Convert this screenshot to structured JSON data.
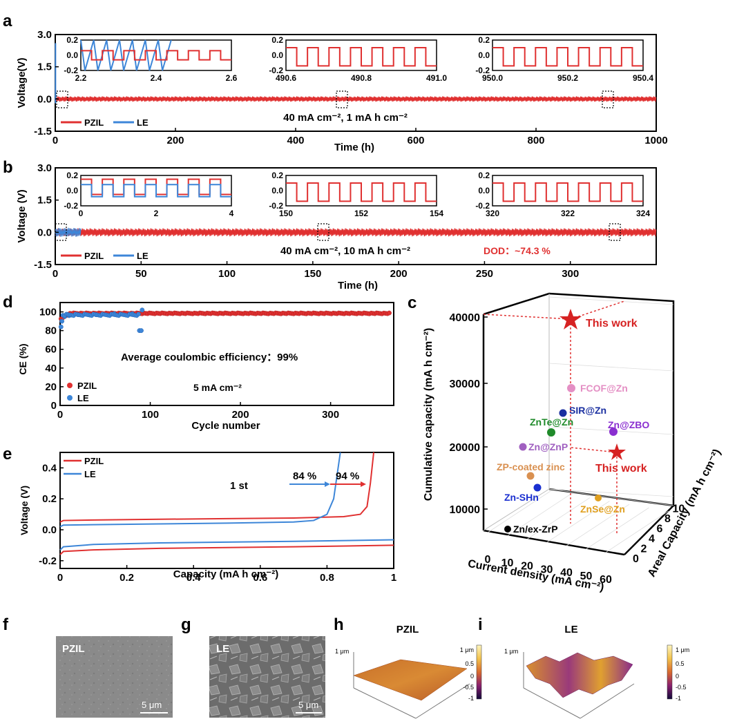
{
  "colors": {
    "pzil": "#e03030",
    "le": "#3d86d8",
    "black": "#000000",
    "sem_bg": "#6a6a6a"
  },
  "panel_a": {
    "letter": "a",
    "ylabel": "Voltage(V)",
    "xlabel": "Time (h)",
    "annotation": "40 mA cm⁻², 1 mA h cm⁻²",
    "legend": [
      "PZIL",
      "LE"
    ],
    "insets": [
      {
        "xticks": [
          "2.2",
          "2.4",
          "2.6"
        ],
        "yticks": [
          "0.2",
          "0.0",
          "-0.2"
        ]
      },
      {
        "xticks": [
          "490.6",
          "490.8",
          "491.0"
        ],
        "yticks": [
          "0.2",
          "0.0",
          "-0.2"
        ]
      },
      {
        "xticks": [
          "950.0",
          "950.2",
          "950.4"
        ],
        "yticks": [
          "0.2",
          "0.0",
          "-0.2"
        ]
      }
    ]
  },
  "panel_b": {
    "letter": "b",
    "ylabel": "Voltage (V)",
    "xlabel": "Time (h)",
    "annotation": "40 mA cm⁻², 10 mA h cm⁻²",
    "dod": "DOD：~74.3 %",
    "legend": [
      "PZIL",
      "LE"
    ],
    "insets": [
      {
        "xticks": [
          "0",
          "2",
          "4"
        ],
        "yticks": [
          "0.2",
          "0.0",
          "-0.2"
        ]
      },
      {
        "xticks": [
          "150",
          "152",
          "154"
        ],
        "yticks": [
          "0.2",
          "0.0",
          "-0.2"
        ]
      },
      {
        "xticks": [
          "320",
          "322",
          "324"
        ],
        "yticks": [
          "0.2",
          "0.0",
          "-0.2"
        ]
      }
    ]
  },
  "panel_d": {
    "letter": "d",
    "ylabel": "CE (%)",
    "xlabel": "Cycle number",
    "annotation": "Average coulombic efficiency：99%",
    "current": "5 mA cm⁻²",
    "legend": [
      "PZIL",
      "LE"
    ]
  },
  "panel_e": {
    "letter": "e",
    "ylabel": "Voltage (V)",
    "xlabel": "Capacity (mA h cm⁻²)",
    "cycle": "1 st",
    "pct_le": "84 %",
    "pct_pzil": "94 %",
    "legend": [
      "PZIL",
      "LE"
    ]
  },
  "panel_c": {
    "letter": "c",
    "zlabel": "Cumulative capacity (mA h cm⁻²)",
    "xlabel": "Current density (mA cm⁻²)",
    "ylabel": "Areal Capacity (mA h cm⁻²)",
    "zticks": [
      "10000",
      "20000",
      "30000",
      "40000"
    ],
    "xticks": [
      "0",
      "10",
      "20",
      "30",
      "40",
      "50",
      "60"
    ],
    "yticks": [
      "0",
      "2",
      "4",
      "6",
      "8",
      "10"
    ],
    "this_work": "This work",
    "points": [
      {
        "label": "FCOF@Zn",
        "color": "#e48fc4"
      },
      {
        "label": "SIR@Zn",
        "color": "#1a2fa0"
      },
      {
        "label": "ZnTe@Zn",
        "color": "#1f8a2a"
      },
      {
        "label": "Zn@ZBO",
        "color": "#8a2fd0"
      },
      {
        "label": "Zn@ZnP",
        "color": "#a060c0"
      },
      {
        "label": "ZP-coated zinc",
        "color": "#d99050"
      },
      {
        "label": "Zn-SHn",
        "color": "#1a2fd0"
      },
      {
        "label": "ZnSe@Zn",
        "color": "#e0a020"
      },
      {
        "label": "Zn/ex-ZrP",
        "color": "#000000"
      }
    ]
  },
  "panel_f": {
    "letter": "f",
    "label": "PZIL",
    "scale": "5 μm"
  },
  "panel_g": {
    "letter": "g",
    "label": "LE",
    "scale": "5 μm"
  },
  "panel_h": {
    "letter": "h",
    "title": "PZIL",
    "zlabel": "1 μm",
    "cbar": [
      "1 μm",
      "0.5",
      "0",
      "-0.5",
      "-1"
    ]
  },
  "panel_i": {
    "letter": "i",
    "title": "LE",
    "zlabel": "1 μm",
    "cbar": [
      "1 μm",
      "0.5",
      "0",
      "-0.5",
      "-1"
    ]
  },
  "chart_data": [
    {
      "type": "line",
      "panel": "a",
      "title": "",
      "xlabel": "Time (h)",
      "ylabel": "Voltage(V)",
      "xlim": [
        0,
        1000
      ],
      "ylim": [
        -1.5,
        3.0
      ],
      "xticks": [
        0,
        200,
        400,
        600,
        800,
        1000
      ],
      "yticks": [
        -1.5,
        0.0,
        1.5,
        3.0
      ],
      "series": [
        {
          "name": "PZIL",
          "x": [
            0,
            1000
          ],
          "y_range": [
            -0.1,
            0.1
          ]
        },
        {
          "name": "LE",
          "x": [
            0,
            2.6
          ],
          "y_range": [
            -0.2,
            2.6
          ]
        }
      ]
    },
    {
      "type": "line",
      "panel": "b",
      "title": "",
      "xlabel": "Time (h)",
      "ylabel": "Voltage (V)",
      "xlim": [
        0,
        350
      ],
      "ylim": [
        -1.5,
        3.0
      ],
      "xticks": [
        0,
        50,
        100,
        150,
        200,
        250,
        300
      ],
      "yticks": [
        -1.5,
        0.0,
        1.5,
        3.0
      ],
      "series": [
        {
          "name": "PZIL",
          "x": [
            0,
            350
          ],
          "y_range": [
            -0.15,
            0.15
          ]
        },
        {
          "name": "LE",
          "x": [
            0,
            15
          ],
          "y_range": [
            -0.2,
            0.2
          ]
        }
      ]
    },
    {
      "type": "scatter",
      "panel": "d",
      "title": "",
      "xlabel": "Cycle number",
      "ylabel": "CE (%)",
      "xlim": [
        0,
        370
      ],
      "ylim": [
        0,
        110
      ],
      "xticks": [
        0,
        100,
        200,
        300
      ],
      "yticks": [
        0,
        20,
        40,
        60,
        80,
        100
      ],
      "series": [
        {
          "name": "PZIL",
          "x": [
            1,
            2,
            3,
            5,
            10,
            20,
            50,
            100,
            150,
            200,
            250,
            300,
            350,
            365
          ],
          "y": [
            92,
            95,
            96,
            97,
            98,
            98,
            99,
            99,
            99,
            99,
            99,
            99,
            99,
            99
          ]
        },
        {
          "name": "LE",
          "x": [
            1,
            2,
            5,
            10,
            20,
            40,
            60,
            80,
            88,
            90,
            91
          ],
          "y": [
            84,
            90,
            95,
            96,
            97,
            97,
            98,
            98,
            80,
            80,
            102
          ]
        }
      ]
    },
    {
      "type": "line",
      "panel": "e",
      "title": "",
      "xlabel": "Capacity (mA h cm⁻²)",
      "ylabel": "Voltage (V)",
      "xlim": [
        0,
        1.0
      ],
      "ylim": [
        -0.25,
        0.5
      ],
      "xticks": [
        0.0,
        0.2,
        0.4,
        0.6,
        0.8,
        1.0
      ],
      "yticks": [
        -0.2,
        0.0,
        0.2,
        0.4
      ],
      "series": [
        {
          "name": "PZIL",
          "x": [
            0.0,
            0.01,
            0.1,
            0.3,
            0.5,
            0.7,
            0.85,
            0.9,
            0.92,
            0.93,
            0.94
          ],
          "y": [
            0.05,
            0.06,
            0.063,
            0.068,
            0.072,
            0.076,
            0.085,
            0.1,
            0.15,
            0.3,
            0.5
          ]
        },
        {
          "name": "LE",
          "x": [
            0.0,
            0.01,
            0.1,
            0.3,
            0.5,
            0.7,
            0.76,
            0.8,
            0.82,
            0.83,
            0.84
          ],
          "y": [
            0.02,
            0.03,
            0.033,
            0.038,
            0.043,
            0.05,
            0.06,
            0.1,
            0.2,
            0.35,
            0.5
          ]
        },
        {
          "name": "PZIL",
          "x": [
            0.0,
            0.01,
            0.1,
            0.3,
            0.5,
            0.7,
            1.0
          ],
          "y": [
            -0.16,
            -0.14,
            -0.13,
            -0.12,
            -0.115,
            -0.11,
            -0.1
          ]
        },
        {
          "name": "LE",
          "x": [
            0.0,
            0.01,
            0.1,
            0.3,
            0.5,
            0.7,
            1.0
          ],
          "y": [
            -0.13,
            -0.11,
            -0.095,
            -0.085,
            -0.08,
            -0.075,
            -0.065
          ]
        }
      ]
    },
    {
      "type": "scatter",
      "panel": "c",
      "title": "",
      "xlabel": "Current density (mA cm⁻²)",
      "ylabel": "Areal Capacity (mA h cm⁻²)",
      "zlabel": "Cumulative capacity (mA h cm⁻²)",
      "xlim": [
        0,
        60
      ],
      "ylim": [
        0,
        10
      ],
      "zlim": [
        6000,
        42000
      ],
      "points": [
        {
          "label": "This work",
          "x": 40,
          "y": 10,
          "z": 40000,
          "marker": "star"
        },
        {
          "label": "This work",
          "x": 40,
          "y": 1,
          "z": 40000,
          "marker": "star"
        },
        {
          "label": "FCOF@Zn",
          "x": 20,
          "y": 5,
          "z": 29000
        },
        {
          "label": "SIR@Zn",
          "x": 10,
          "y": 5,
          "z": 25000
        },
        {
          "label": "ZnTe@Zn",
          "x": 10,
          "y": 5,
          "z": 22000
        },
        {
          "label": "Zn@ZBO",
          "x": 30,
          "y": 5,
          "z": 22000
        },
        {
          "label": "Zn@ZnP",
          "x": 5,
          "y": 2,
          "z": 20000
        },
        {
          "label": "ZP-coated zinc",
          "x": 5,
          "y": 1,
          "z": 15000
        },
        {
          "label": "Zn-SHn",
          "x": 10,
          "y": 1,
          "z": 13000
        },
        {
          "label": "ZnSe@Zn",
          "x": 20,
          "y": 1,
          "z": 11500
        },
        {
          "label": "Zn/ex-ZrP",
          "x": 1,
          "y": 1,
          "z": 7000
        }
      ]
    }
  ]
}
